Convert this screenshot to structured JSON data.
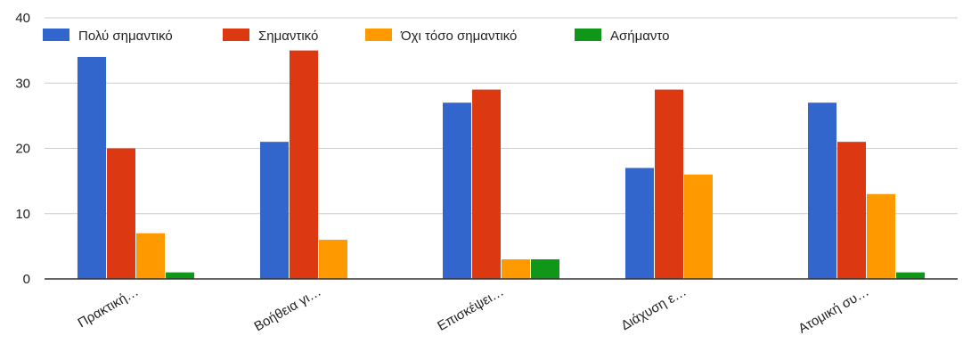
{
  "chart_data": {
    "type": "bar",
    "categories": [
      "Πρακτική…",
      "Βοήθεια γι…",
      "Επισκέψει…",
      "Διάχυση ε…",
      "Ατομική συ…"
    ],
    "series": [
      {
        "name": "Πολύ σημαντικό",
        "color": "#3366cc",
        "values": [
          34,
          21,
          27,
          17,
          27
        ]
      },
      {
        "name": "Σημαντικό",
        "color": "#dc3912",
        "values": [
          20,
          35,
          29,
          29,
          21
        ]
      },
      {
        "name": "Όχι τόσο σημαντικό",
        "color": "#ff9900",
        "values": [
          7,
          6,
          3,
          16,
          13
        ]
      },
      {
        "name": "Ασήμαντο",
        "color": "#109618",
        "values": [
          1,
          0,
          3,
          0,
          1
        ]
      }
    ],
    "yticks": [
      "0",
      "10",
      "20",
      "30",
      "40"
    ],
    "ylim": [
      0,
      40
    ],
    "grid": true,
    "legend_position": "top"
  }
}
